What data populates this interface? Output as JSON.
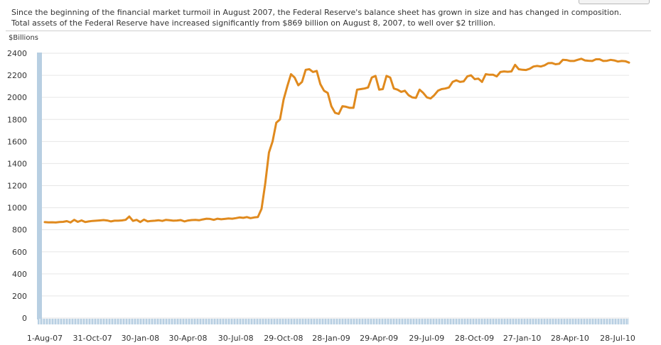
{
  "intro": {
    "line1": "Since the beginning of the financial market turmoil in August 2007, the Federal Reserve's balance sheet has grown in size and has changed in composition.",
    "line2": "Total assets of the Federal Reserve have increased significantly from $869 billion on August 8, 2007, to well over $2 trillion."
  },
  "colors": {
    "line": "#e08a1e",
    "grid": "#e6e6e6",
    "axis_bar": "#b8cfe2",
    "text": "#333333"
  },
  "chart_data": {
    "type": "line",
    "title": "",
    "ylabel": "$Billions",
    "xlabel": "",
    "ylim": [
      0,
      2400
    ],
    "yticks": [
      0,
      200,
      400,
      600,
      800,
      1000,
      1200,
      1400,
      1600,
      1800,
      2000,
      2200,
      2400
    ],
    "xlabels": [
      "1-Aug-07",
      "31-Oct-07",
      "30-Jan-08",
      "30-Apr-08",
      "30-Jul-08",
      "29-Oct-08",
      "28-Jan-09",
      "29-Apr-09",
      "29-Jul-09",
      "28-Oct-09",
      "27-Jan-10",
      "28-Apr-10",
      "28-Jul-10"
    ],
    "grid": true,
    "legend": "none",
    "series": [
      {
        "start": "1-Aug-07",
        "interval": "weekly",
        "values": [
          869,
          867,
          868,
          866,
          870,
          872,
          878,
          866,
          890,
          872,
          885,
          870,
          876,
          880,
          882,
          885,
          888,
          884,
          876,
          882,
          882,
          885,
          890,
          920,
          880,
          890,
          870,
          892,
          876,
          880,
          882,
          886,
          880,
          890,
          886,
          882,
          884,
          888,
          876,
          884,
          888,
          890,
          886,
          894,
          900,
          898,
          890,
          900,
          895,
          898,
          902,
          900,
          905,
          912,
          908,
          915,
          905,
          912,
          915,
          990,
          1220,
          1500,
          1600,
          1770,
          1800,
          1980,
          2100,
          2210,
          2180,
          2110,
          2140,
          2250,
          2255,
          2230,
          2240,
          2120,
          2060,
          2040,
          1920,
          1860,
          1850,
          1920,
          1915,
          1905,
          1905,
          2070,
          2075,
          2080,
          2090,
          2180,
          2195,
          2070,
          2075,
          2195,
          2180,
          2080,
          2070,
          2050,
          2060,
          2020,
          2000,
          1995,
          2070,
          2040,
          2000,
          1990,
          2020,
          2060,
          2075,
          2080,
          2090,
          2140,
          2155,
          2140,
          2145,
          2190,
          2200,
          2165,
          2170,
          2140,
          2210,
          2205,
          2205,
          2190,
          2230,
          2235,
          2232,
          2235,
          2295,
          2255,
          2250,
          2248,
          2260,
          2280,
          2285,
          2280,
          2290,
          2310,
          2312,
          2300,
          2305,
          2340,
          2338,
          2330,
          2330,
          2340,
          2350,
          2335,
          2332,
          2330,
          2345,
          2345,
          2330,
          2332,
          2340,
          2335,
          2325,
          2330,
          2328,
          2315
        ]
      }
    ]
  }
}
